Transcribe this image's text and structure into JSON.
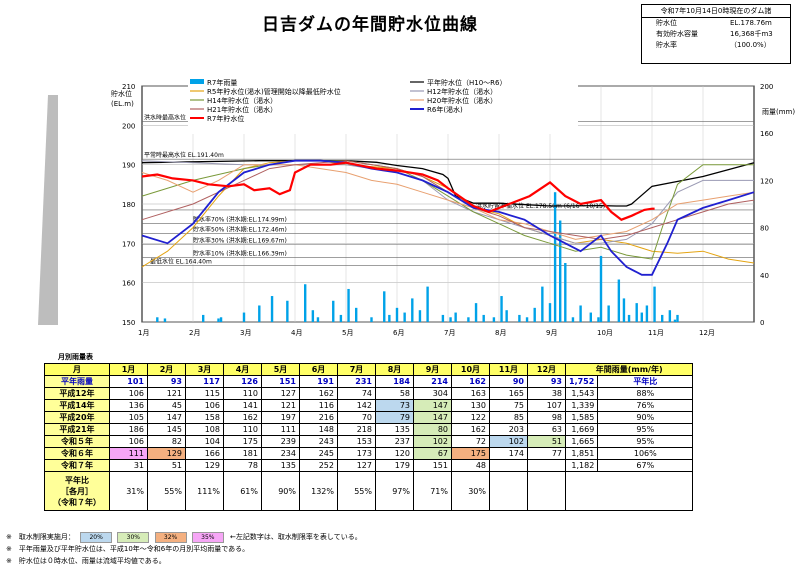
{
  "title": "日吉ダムの年間貯水位曲線",
  "status": {
    "header": "令和7年10月14日0時現在のダム諸",
    "rows": [
      {
        "label": "貯水位",
        "value": "EL.178.76m"
      },
      {
        "label": "有効貯水容量",
        "value": "16,368千m3"
      },
      {
        "label": "貯水率",
        "value": "（100.0%）"
      }
    ]
  },
  "chart_data": {
    "type": "line",
    "yleft_label": "貯水位\n(EL.m)",
    "yright_label": "雨量(mm)",
    "yleft_ticks": [
      "150",
      "160",
      "170",
      "180",
      "190",
      "200",
      "210"
    ],
    "yright_ticks": [
      "0",
      "40",
      "80",
      "120",
      "160",
      "200"
    ],
    "ylim": [
      150,
      210
    ],
    "ylim_right": [
      0,
      200
    ],
    "months": [
      "1月",
      "2月",
      "3月",
      "4月",
      "5月",
      "6月",
      "7月",
      "8月",
      "9月",
      "10月",
      "11月",
      "12月"
    ],
    "legend": [
      {
        "name": "R7年雨量",
        "color": "#00a2e8",
        "kind": "bar"
      },
      {
        "name": "平年貯水位（H10～R6）",
        "color": "#000000"
      },
      {
        "name": "R5年貯水位(渇水)管理開始以降最低貯水位",
        "color": "#e4a412"
      },
      {
        "name": "H12年貯水位（渇水）",
        "color": "#9a9ab4"
      },
      {
        "name": "H14年貯水位（渇水）",
        "color": "#7a9a3a"
      },
      {
        "name": "H20年貯水位（渇水）",
        "color": "#e8a070"
      },
      {
        "name": "H21年貯水位（渇水）",
        "color": "#b06060"
      },
      {
        "name": "R6年(渇水)",
        "color": "#2020d0"
      },
      {
        "name": "R7年貯水位",
        "color": "#ff0000"
      }
    ],
    "annotations": [
      {
        "text": "洪水時最高水位 EL.201.00m",
        "y": 201
      },
      {
        "text": "平常時最高水位 EL.191.40m",
        "y": 191.4
      },
      {
        "text": "洪水貯留準備水位 EL.178.50m (6/16～10/15)",
        "y": 178.5
      },
      {
        "text": "貯水率70% (洪水期:EL.174.99m)",
        "y": 174.99
      },
      {
        "text": "貯水率50% (洪水期:EL.172.46m)",
        "y": 172.46
      },
      {
        "text": "貯水率30% (洪水期:EL.169.67m)",
        "y": 169.67
      },
      {
        "text": "貯水率10% (洪水期:EL.166.39m)",
        "y": 166.39
      },
      {
        "text": "最低水位 EL.164.40m",
        "y": 164.4
      }
    ],
    "series": [
      {
        "name": "平年貯水位（H10～R6）",
        "color": "#000000",
        "width": 1.3,
        "x": [
          0,
          2.3,
          3,
          3.5,
          4,
          4.6,
          5,
          5.5,
          5.9,
          6,
          6.15,
          6.5,
          7,
          8,
          9,
          9.3,
          9.5,
          9.6,
          10,
          11,
          12
        ],
        "y": [
          190.5,
          191,
          191,
          191,
          191,
          190.6,
          189.8,
          189,
          187.5,
          186.5,
          182,
          180.2,
          180.2,
          179.5,
          179.6,
          179.5,
          179.5,
          180,
          184.5,
          187,
          190.5
        ]
      },
      {
        "name": "R5年貯水位(渇水)管理開始以降最低貯水位",
        "color": "#e4a412",
        "width": 1,
        "x": [
          0,
          0.5,
          1,
          1.5,
          2,
          2.5,
          3,
          3.5,
          4,
          4.5,
          5,
          5.5,
          6,
          6.5,
          7,
          7.5,
          8,
          8.5,
          9,
          9.5,
          10,
          10.5,
          11,
          11.5,
          12
        ],
        "y": [
          164,
          168,
          174,
          182,
          189,
          190.5,
          191,
          191,
          190,
          189.5,
          189,
          187,
          184,
          179,
          177.5,
          174,
          172,
          170,
          171,
          170,
          168,
          167.5,
          168,
          166,
          165
        ]
      },
      {
        "name": "H12年貯水位（渇水）",
        "color": "#9a9ab4",
        "width": 1,
        "x": [
          0,
          1,
          2,
          3,
          4,
          5,
          5.5,
          6,
          6.5,
          7,
          7.5,
          8,
          8.5,
          9,
          9.5,
          10,
          10.5,
          11,
          11.5,
          12
        ],
        "y": [
          191,
          190.5,
          190,
          190,
          190,
          188,
          186,
          181,
          178,
          176,
          174,
          172,
          170,
          170,
          171,
          175,
          183,
          186,
          186,
          186
        ]
      },
      {
        "name": "H14年貯水位（渇水）",
        "color": "#7a9a3a",
        "width": 1,
        "x": [
          0,
          1,
          2,
          3,
          4,
          5,
          5.5,
          6,
          6.5,
          7,
          7.5,
          8,
          8.5,
          9,
          9.5,
          10,
          10.2,
          10.5,
          11,
          11.5,
          12
        ],
        "y": [
          182,
          186,
          189,
          191,
          191,
          189,
          186,
          182,
          178,
          175,
          172,
          170,
          168,
          169,
          167,
          166,
          174,
          185,
          190,
          190,
          190
        ]
      },
      {
        "name": "H20年貯水位（渇水）",
        "color": "#e8a070",
        "width": 1,
        "x": [
          0,
          0.5,
          1,
          1.5,
          2,
          2.5,
          3,
          3.5,
          4,
          4.5,
          5,
          5.5,
          6,
          6.5,
          7,
          7.5,
          8,
          8.5,
          9,
          9.5,
          10,
          10.5,
          11,
          11.5,
          12
        ],
        "y": [
          188,
          186,
          183,
          186,
          190,
          190,
          190,
          189,
          188,
          186,
          185,
          183,
          181,
          179,
          176,
          175,
          173,
          171,
          172,
          173,
          176,
          180,
          181,
          182,
          183
        ]
      },
      {
        "name": "H21年貯水位（渇水）",
        "color": "#b06060",
        "width": 1,
        "x": [
          0,
          1,
          2,
          2.5,
          3,
          4,
          5,
          5.5,
          6,
          6.5,
          7,
          7.5,
          8,
          8.5,
          9,
          9.5,
          10,
          10.5,
          11,
          11.5,
          12
        ],
        "y": [
          176,
          180,
          186,
          189,
          190,
          191,
          189,
          187,
          183,
          179,
          177,
          174,
          173,
          172,
          171,
          172,
          174,
          176,
          178,
          180,
          181
        ]
      },
      {
        "name": "R6年(渇水)",
        "color": "#2020d0",
        "width": 1.8,
        "x": [
          0,
          0.5,
          1,
          1.5,
          2,
          2.5,
          3,
          3.5,
          4,
          4.5,
          5,
          5.5,
          6,
          6.5,
          7,
          7.5,
          8,
          8.3,
          8.6,
          9,
          9.2,
          9.5,
          9.8,
          10,
          10.3,
          10.5,
          11,
          11.5,
          12
        ],
        "y": [
          172,
          170,
          175,
          183,
          188,
          190,
          191,
          191,
          190.5,
          189,
          188,
          186,
          183,
          179,
          178,
          176,
          172,
          170,
          168,
          172,
          168,
          164,
          162,
          162,
          170,
          176,
          179,
          181,
          183
        ]
      },
      {
        "name": "R7年貯水位",
        "color": "#ff0000",
        "width": 2.2,
        "x": [
          0,
          0.3,
          0.6,
          1,
          1.3,
          1.7,
          2,
          2.2,
          2.5,
          2.7,
          2.9,
          3,
          3.3,
          3.7,
          4,
          4.2,
          4.6,
          5,
          5.5,
          5.8,
          6,
          6.5,
          6.8,
          7.2,
          7.6,
          8,
          8.3,
          8.6,
          9,
          9.2,
          9.4,
          9.6,
          9.85,
          10,
          10.05
        ],
        "y": [
          187,
          187.5,
          186.5,
          186,
          185,
          184.5,
          185,
          183.5,
          184,
          182.5,
          183.5,
          188,
          190,
          190,
          190.5,
          190,
          189,
          188.5,
          187.5,
          186,
          184,
          179.5,
          178,
          180,
          182,
          185.5,
          182,
          180,
          181,
          178,
          176,
          177,
          178.5,
          178.8,
          178.8
        ]
      }
    ],
    "rainfall": {
      "name": "R7年雨量",
      "x": [
        0.3,
        0.45,
        1.2,
        1.5,
        1.55,
        2.0,
        2.3,
        2.55,
        2.85,
        3.2,
        3.35,
        3.45,
        3.75,
        3.9,
        4.05,
        4.2,
        4.5,
        4.75,
        4.85,
        5.0,
        5.15,
        5.3,
        5.45,
        5.6,
        5.9,
        6.05,
        6.15,
        6.4,
        6.55,
        6.7,
        6.9,
        7.05,
        7.15,
        7.4,
        7.55,
        7.7,
        7.85,
        8.0,
        8.1,
        8.2,
        8.3,
        8.45,
        8.6,
        8.8,
        8.95,
        9.0,
        9.15,
        9.35,
        9.45,
        9.55,
        9.7,
        9.8,
        9.9,
        10.05,
        10.2,
        10.35,
        10.45,
        10.5
      ],
      "v": [
        4,
        3,
        6,
        3,
        4,
        8,
        14,
        22,
        18,
        32,
        10,
        4,
        18,
        6,
        28,
        12,
        4,
        26,
        6,
        12,
        8,
        20,
        10,
        30,
        6,
        4,
        8,
        4,
        16,
        6,
        4,
        22,
        10,
        6,
        4,
        12,
        30,
        16,
        110,
        86,
        50,
        4,
        14,
        8,
        4,
        56,
        14,
        36,
        20,
        6,
        16,
        8,
        14,
        30,
        6,
        10,
        2,
        6
      ]
    }
  },
  "table": {
    "title": "月別雨量表",
    "headers": [
      "月",
      "1月",
      "2月",
      "3月",
      "4月",
      "5月",
      "6月",
      "7月",
      "8月",
      "9月",
      "10月",
      "11月",
      "12月",
      "年間雨量(mm/年)"
    ],
    "rows": [
      {
        "label": "平年雨量",
        "avg": true,
        "vals": [
          "101",
          "93",
          "117",
          "126",
          "151",
          "191",
          "231",
          "184",
          "214",
          "162",
          "90",
          "93"
        ],
        "total": "1,752",
        "pct": "平年比"
      },
      {
        "label": "平成12年",
        "vals": [
          "106",
          "121",
          "115",
          "110",
          "127",
          "162",
          "74",
          "58",
          "304",
          "163",
          "165",
          "38"
        ],
        "total": "1,543",
        "pct": "88%"
      },
      {
        "label": "平成14年",
        "vals": [
          "136",
          "45",
          "106",
          "141",
          "121",
          "116",
          "142",
          "73",
          "147",
          "130",
          "75",
          "107"
        ],
        "total": "1,339",
        "pct": "76%"
      },
      {
        "label": "平成20年",
        "vals": [
          "105",
          "147",
          "158",
          "162",
          "197",
          "216",
          "70",
          "79",
          "147",
          "122",
          "85",
          "98"
        ],
        "total": "1,585",
        "pct": "90%"
      },
      {
        "label": "平成21年",
        "vals": [
          "186",
          "145",
          "108",
          "110",
          "111",
          "148",
          "218",
          "135",
          "80",
          "162",
          "203",
          "63"
        ],
        "total": "1,669",
        "pct": "95%"
      },
      {
        "label": "令和５年",
        "vals": [
          "106",
          "82",
          "104",
          "175",
          "239",
          "243",
          "153",
          "237",
          "102",
          "72",
          "102",
          "51"
        ],
        "total": "1,665",
        "pct": "95%"
      },
      {
        "label": "令和６年",
        "vals": [
          "111",
          "129",
          "166",
          "181",
          "234",
          "245",
          "173",
          "120",
          "67",
          "175",
          "174",
          "77"
        ],
        "total": "1,851",
        "pct": "106%"
      },
      {
        "label": "令和７年",
        "vals": [
          "31",
          "51",
          "129",
          "78",
          "135",
          "252",
          "127",
          "179",
          "151",
          "48",
          "",
          ""
        ],
        "total": "1,182",
        "pct": "67%"
      }
    ],
    "ratio_label": [
      "平年比",
      "［各月］",
      "（令和７年）"
    ],
    "ratio": [
      "31%",
      "55%",
      "111%",
      "61%",
      "90%",
      "132%",
      "55%",
      "97%",
      "71%",
      "30%",
      "",
      ""
    ],
    "highlights": {
      "平成14年": {
        "7": "c20",
        "8": "c30"
      },
      "平成20年": {
        "7": "c20",
        "8": "c30"
      },
      "平成21年": {
        "8": "c30"
      },
      "令和５年": {
        "8": "c30",
        "10": "c20",
        "11": "c30"
      },
      "令和６年": {
        "0": "c35",
        "1": "c32",
        "8": "c30",
        "9": "c32"
      }
    }
  },
  "notes": {
    "line1_prefix": "※　取水制限実施月：",
    "chips": [
      "20%",
      "30%",
      "32%",
      "35%"
    ],
    "line1_suffix": "←左記数字は、取水制限率を表している。",
    "line2": "※　平年雨量及び平年貯水位は、平成10年～令和6年の月別平均雨量である。",
    "line3": "※　貯水位は０時水位、雨量は流域平均値である。"
  }
}
